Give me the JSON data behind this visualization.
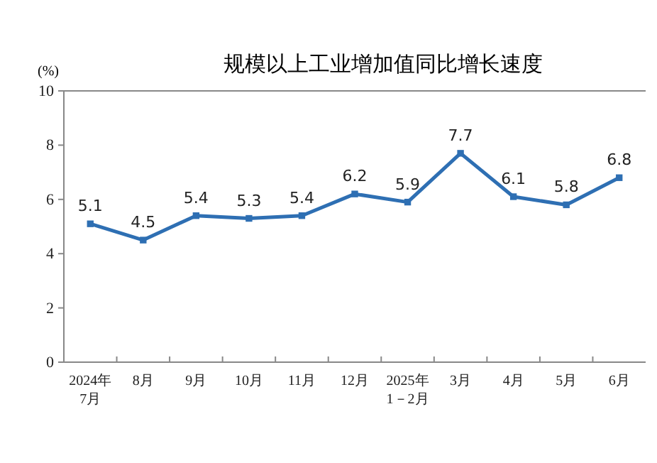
{
  "chart_data": {
    "type": "line",
    "title": "规模以上工业增加值同比增长速度",
    "ylabel": "(%)",
    "categories": [
      "2024年\n7月",
      "8月",
      "9月",
      "10月",
      "11月",
      "12月",
      "2025年\n1－2月",
      "3月",
      "4月",
      "5月",
      "6月"
    ],
    "series": [
      {
        "color": "#2e6fb3",
        "values": [
          5.1,
          4.5,
          5.4,
          5.3,
          5.4,
          6.2,
          5.9,
          7.7,
          6.1,
          5.8,
          6.8
        ]
      }
    ],
    "ylim": [
      0,
      10
    ],
    "yticks": [
      0,
      2,
      4,
      6,
      8,
      10
    ],
    "grid": false,
    "marker": "square",
    "line_style": "solid",
    "data_labels": true
  }
}
